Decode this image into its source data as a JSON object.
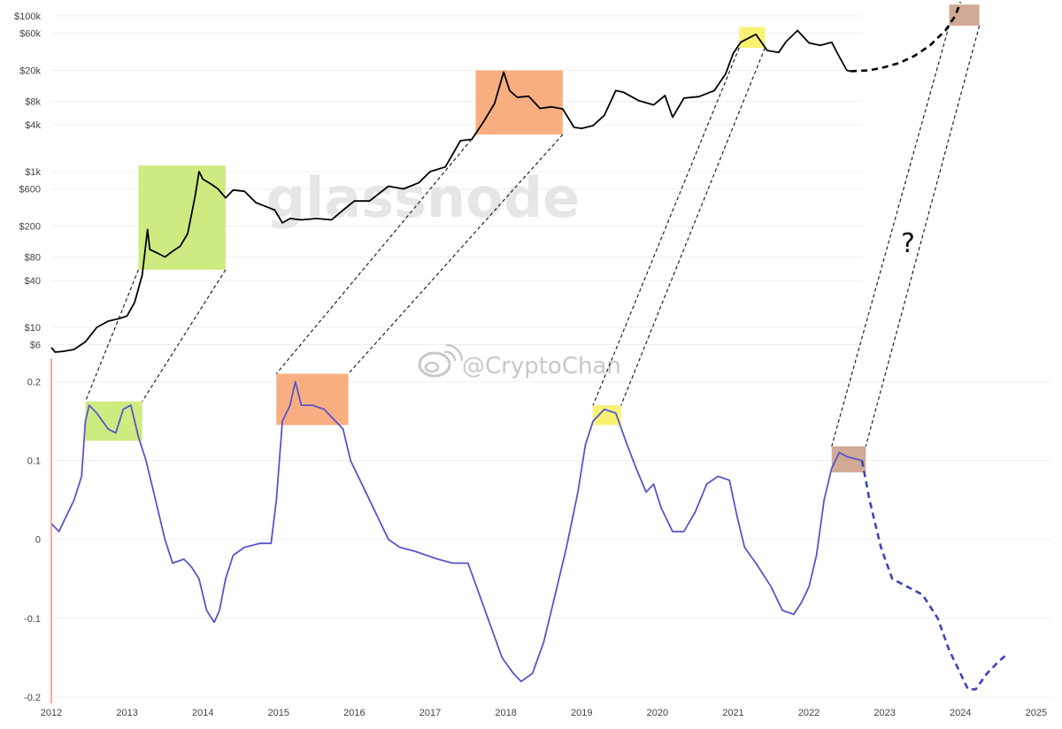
{
  "chart_data": [
    {
      "type": "line",
      "title": "",
      "y_scale": "log",
      "y_tick_labels": [
        "$100k",
        "$60k",
        "$20k",
        "$8k",
        "$4k",
        "$1k",
        "$600",
        "$200",
        "$80",
        "$40",
        "$10",
        "$6"
      ],
      "y_tick_values": [
        100000,
        60000,
        20000,
        8000,
        4000,
        1000,
        600,
        200,
        80,
        40,
        10,
        6
      ],
      "ylim": [
        4,
        130000
      ],
      "series": [
        {
          "color": "#000000",
          "style": "solid",
          "points": [
            [
              2012.0,
              5.5
            ],
            [
              2012.05,
              4.8
            ],
            [
              2012.15,
              4.9
            ],
            [
              2012.3,
              5.2
            ],
            [
              2012.45,
              6.5
            ],
            [
              2012.6,
              10
            ],
            [
              2012.75,
              12
            ],
            [
              2012.9,
              13
            ],
            [
              2013.0,
              14
            ],
            [
              2013.1,
              21
            ],
            [
              2013.2,
              47
            ],
            [
              2013.27,
              180
            ],
            [
              2013.3,
              100
            ],
            [
              2013.4,
              90
            ],
            [
              2013.5,
              80
            ],
            [
              2013.6,
              95
            ],
            [
              2013.7,
              110
            ],
            [
              2013.8,
              160
            ],
            [
              2013.9,
              500
            ],
            [
              2013.95,
              1000
            ],
            [
              2014.0,
              800
            ],
            [
              2014.1,
              700
            ],
            [
              2014.2,
              600
            ],
            [
              2014.3,
              460
            ],
            [
              2014.4,
              580
            ],
            [
              2014.55,
              560
            ],
            [
              2014.7,
              400
            ],
            [
              2014.85,
              350
            ],
            [
              2014.95,
              320
            ],
            [
              2015.05,
              220
            ],
            [
              2015.15,
              250
            ],
            [
              2015.3,
              240
            ],
            [
              2015.5,
              250
            ],
            [
              2015.7,
              240
            ],
            [
              2015.85,
              320
            ],
            [
              2016.0,
              420
            ],
            [
              2016.2,
              420
            ],
            [
              2016.45,
              650
            ],
            [
              2016.65,
              600
            ],
            [
              2016.85,
              720
            ],
            [
              2017.0,
              1000
            ],
            [
              2017.2,
              1150
            ],
            [
              2017.4,
              2500
            ],
            [
              2017.55,
              2600
            ],
            [
              2017.7,
              4300
            ],
            [
              2017.85,
              7500
            ],
            [
              2017.97,
              19000
            ],
            [
              2018.05,
              11000
            ],
            [
              2018.15,
              9000
            ],
            [
              2018.3,
              9300
            ],
            [
              2018.45,
              6500
            ],
            [
              2018.6,
              6800
            ],
            [
              2018.75,
              6400
            ],
            [
              2018.9,
              3700
            ],
            [
              2019.0,
              3600
            ],
            [
              2019.15,
              3900
            ],
            [
              2019.3,
              5300
            ],
            [
              2019.45,
              11000
            ],
            [
              2019.55,
              10500
            ],
            [
              2019.75,
              8200
            ],
            [
              2019.95,
              7200
            ],
            [
              2020.1,
              9500
            ],
            [
              2020.2,
              5000
            ],
            [
              2020.35,
              8800
            ],
            [
              2020.55,
              9200
            ],
            [
              2020.75,
              11000
            ],
            [
              2020.9,
              18000
            ],
            [
              2021.0,
              33000
            ],
            [
              2021.1,
              46000
            ],
            [
              2021.3,
              58000
            ],
            [
              2021.45,
              36000
            ],
            [
              2021.6,
              34000
            ],
            [
              2021.7,
              47000
            ],
            [
              2021.85,
              65000
            ],
            [
              2022.0,
              45000
            ],
            [
              2022.15,
              42000
            ],
            [
              2022.3,
              46000
            ],
            [
              2022.4,
              30000
            ],
            [
              2022.5,
              20000
            ],
            [
              2022.55,
              19500
            ]
          ]
        },
        {
          "color": "#000000",
          "style": "dashed",
          "points": [
            [
              2022.55,
              19500
            ],
            [
              2022.8,
              20000
            ],
            [
              2023.0,
              22000
            ],
            [
              2023.2,
              25000
            ],
            [
              2023.4,
              31000
            ],
            [
              2023.6,
              42000
            ],
            [
              2023.8,
              65000
            ],
            [
              2023.93,
              100000
            ],
            [
              2024.0,
              150000
            ]
          ]
        }
      ],
      "highlights": [
        {
          "x": [
            2013.15,
            2014.3
          ],
          "y": [
            55,
            1200
          ],
          "color": "#c5e86c"
        },
        {
          "x": [
            2017.6,
            2018.75
          ],
          "y": [
            3000,
            20000
          ],
          "color": "#f7a06b"
        },
        {
          "x": [
            2021.08,
            2021.42
          ],
          "y": [
            39000,
            72000
          ],
          "color": "#f7f05a"
        },
        {
          "x": [
            2023.85,
            2024.25
          ],
          "y": [
            75000,
            140000
          ],
          "color": "#c99a83"
        }
      ]
    },
    {
      "type": "line",
      "title": "",
      "x_tick_labels": [
        "2012",
        "2013",
        "2014",
        "2015",
        "2016",
        "2017",
        "2018",
        "2019",
        "2020",
        "2021",
        "2022",
        "2023",
        "2024",
        "2025"
      ],
      "xlim": [
        2012,
        2025.2
      ],
      "y_tick_labels": [
        "0.2",
        "0.1",
        "0",
        "-0.1",
        "-0.2"
      ],
      "y_tick_values": [
        0.2,
        0.1,
        0,
        -0.1,
        -0.2
      ],
      "ylim": [
        -0.21,
        0.215
      ],
      "series": [
        {
          "color": "#5656c9",
          "style": "solid",
          "points": [
            [
              2012.0,
              0.02
            ],
            [
              2012.1,
              0.01
            ],
            [
              2012.2,
              0.03
            ],
            [
              2012.3,
              0.05
            ],
            [
              2012.4,
              0.08
            ],
            [
              2012.45,
              0.15
            ],
            [
              2012.5,
              0.17
            ],
            [
              2012.6,
              0.16
            ],
            [
              2012.75,
              0.14
            ],
            [
              2012.85,
              0.135
            ],
            [
              2012.95,
              0.165
            ],
            [
              2013.05,
              0.17
            ],
            [
              2013.15,
              0.13
            ],
            [
              2013.25,
              0.1
            ],
            [
              2013.35,
              0.06
            ],
            [
              2013.5,
              0.0
            ],
            [
              2013.6,
              -0.03
            ],
            [
              2013.75,
              -0.025
            ],
            [
              2013.85,
              -0.035
            ],
            [
              2013.95,
              -0.05
            ],
            [
              2014.05,
              -0.09
            ],
            [
              2014.15,
              -0.105
            ],
            [
              2014.22,
              -0.09
            ],
            [
              2014.3,
              -0.05
            ],
            [
              2014.4,
              -0.02
            ],
            [
              2014.55,
              -0.01
            ],
            [
              2014.75,
              -0.005
            ],
            [
              2014.9,
              -0.005
            ],
            [
              2014.97,
              0.05
            ],
            [
              2015.05,
              0.15
            ],
            [
              2015.15,
              0.17
            ],
            [
              2015.22,
              0.2
            ],
            [
              2015.3,
              0.17
            ],
            [
              2015.45,
              0.17
            ],
            [
              2015.6,
              0.165
            ],
            [
              2015.75,
              0.15
            ],
            [
              2015.85,
              0.14
            ],
            [
              2015.95,
              0.1
            ],
            [
              2016.1,
              0.07
            ],
            [
              2016.3,
              0.03
            ],
            [
              2016.45,
              0.0
            ],
            [
              2016.6,
              -0.01
            ],
            [
              2016.8,
              -0.015
            ],
            [
              2016.95,
              -0.02
            ],
            [
              2017.1,
              -0.025
            ],
            [
              2017.3,
              -0.03
            ],
            [
              2017.5,
              -0.03
            ],
            [
              2017.65,
              -0.07
            ],
            [
              2017.8,
              -0.11
            ],
            [
              2017.95,
              -0.15
            ],
            [
              2018.1,
              -0.17
            ],
            [
              2018.2,
              -0.18
            ],
            [
              2018.35,
              -0.17
            ],
            [
              2018.5,
              -0.13
            ],
            [
              2018.65,
              -0.07
            ],
            [
              2018.8,
              -0.01
            ],
            [
              2018.95,
              0.06
            ],
            [
              2019.05,
              0.12
            ],
            [
              2019.15,
              0.15
            ],
            [
              2019.3,
              0.165
            ],
            [
              2019.45,
              0.16
            ],
            [
              2019.6,
              0.12
            ],
            [
              2019.72,
              0.09
            ],
            [
              2019.85,
              0.06
            ],
            [
              2019.95,
              0.07
            ],
            [
              2020.05,
              0.04
            ],
            [
              2020.2,
              0.01
            ],
            [
              2020.35,
              0.01
            ],
            [
              2020.5,
              0.035
            ],
            [
              2020.65,
              0.07
            ],
            [
              2020.8,
              0.08
            ],
            [
              2020.95,
              0.075
            ],
            [
              2021.05,
              0.03
            ],
            [
              2021.15,
              -0.01
            ],
            [
              2021.3,
              -0.03
            ],
            [
              2021.5,
              -0.06
            ],
            [
              2021.65,
              -0.09
            ],
            [
              2021.8,
              -0.095
            ],
            [
              2021.9,
              -0.08
            ],
            [
              2022.0,
              -0.06
            ],
            [
              2022.1,
              -0.02
            ],
            [
              2022.2,
              0.05
            ],
            [
              2022.3,
              0.09
            ],
            [
              2022.4,
              0.11
            ],
            [
              2022.5,
              0.105
            ],
            [
              2022.7,
              0.1
            ]
          ]
        },
        {
          "color": "#3b44b8",
          "style": "dashed",
          "points": [
            [
              2022.7,
              0.1
            ],
            [
              2022.8,
              0.05
            ],
            [
              2022.95,
              -0.01
            ],
            [
              2023.1,
              -0.05
            ],
            [
              2023.3,
              -0.06
            ],
            [
              2023.5,
              -0.07
            ],
            [
              2023.7,
              -0.1
            ],
            [
              2023.85,
              -0.14
            ],
            [
              2024.0,
              -0.17
            ],
            [
              2024.1,
              -0.19
            ],
            [
              2024.2,
              -0.19
            ],
            [
              2024.35,
              -0.17
            ],
            [
              2024.5,
              -0.155
            ],
            [
              2024.62,
              -0.145
            ]
          ]
        }
      ],
      "highlights": [
        {
          "x": [
            2012.45,
            2013.2
          ],
          "y": [
            0.125,
            0.175
          ],
          "color": "#c5e86c"
        },
        {
          "x": [
            2014.97,
            2015.92
          ],
          "y": [
            0.145,
            0.21
          ],
          "color": "#f7a06b"
        },
        {
          "x": [
            2019.15,
            2019.52
          ],
          "y": [
            0.145,
            0.17
          ],
          "color": "#f7f05a"
        },
        {
          "x": [
            2022.3,
            2022.75
          ],
          "y": [
            0.085,
            0.118
          ],
          "color": "#c99a83"
        }
      ]
    }
  ],
  "connectors": [
    {
      "upper": 0,
      "lower": 0
    },
    {
      "upper": 1,
      "lower": 1
    },
    {
      "upper": 2,
      "lower": 2
    },
    {
      "upper": 3,
      "lower": 3
    }
  ],
  "annotations": {
    "watermark": "glassnode",
    "handle": "@CryptoChan",
    "question": "?"
  },
  "colors": {
    "price_line": "#000000",
    "indicator_line": "#5656c9",
    "indicator_projection": "#3b44b8",
    "left_axis_marker": "#f28b82",
    "grid": "#efefef"
  }
}
